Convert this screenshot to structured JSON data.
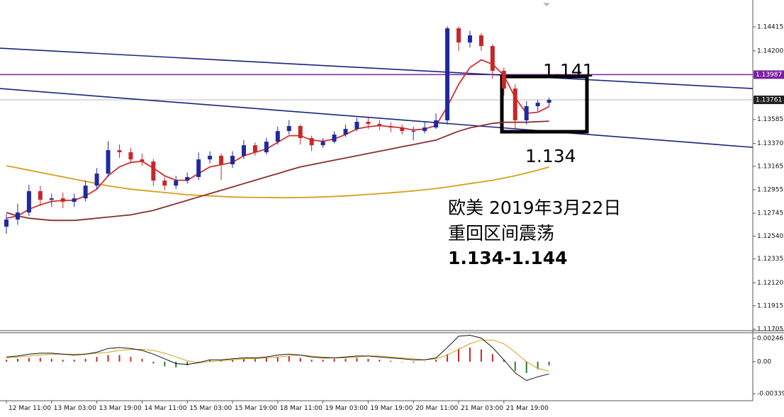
{
  "chart_data": {
    "type": "candlestick",
    "categories": [
      "12 Mar 11:00",
      null,
      null,
      null,
      "13 Mar 03:00",
      null,
      null,
      null,
      "13 Mar 19:00",
      null,
      null,
      null,
      "14 Mar 11:00",
      null,
      null,
      null,
      "15 Mar 03:00",
      null,
      null,
      null,
      "15 Mar 19:00",
      null,
      null,
      null,
      "18 Mar 11:00",
      null,
      null,
      null,
      "19 Mar 03:00",
      null,
      null,
      null,
      "19 Mar 19:00",
      null,
      null,
      null,
      "20 Mar 11:00",
      null,
      null,
      null,
      "21 Mar 03:00",
      null,
      null,
      null,
      "21 Mar 19:00",
      null,
      null,
      null,
      null
    ],
    "ohlc": [
      [
        1.12624,
        1.1274,
        1.1256,
        1.12688
      ],
      [
        1.12688,
        1.1283,
        1.1264,
        1.12751
      ],
      [
        1.12751,
        1.13,
        1.1272,
        1.12942
      ],
      [
        1.12942,
        1.1299,
        1.1281,
        1.12865
      ],
      [
        1.12865,
        1.1292,
        1.128,
        1.12878
      ],
      [
        1.12878,
        1.1293,
        1.1279,
        1.12846
      ],
      [
        1.12846,
        1.1292,
        1.128,
        1.12878
      ],
      [
        1.12878,
        1.1304,
        1.1285,
        1.12992
      ],
      [
        1.12992,
        1.1315,
        1.1296,
        1.131
      ],
      [
        1.131,
        1.1339,
        1.1307,
        1.1331
      ],
      [
        1.1331,
        1.1336,
        1.1324,
        1.13291
      ],
      [
        1.13291,
        1.1333,
        1.1319,
        1.13227
      ],
      [
        1.13227,
        1.1328,
        1.1317,
        1.13208
      ],
      [
        1.13208,
        1.1323,
        1.1299,
        1.13037
      ],
      [
        1.13037,
        1.1307,
        1.1295,
        1.12992
      ],
      [
        1.12992,
        1.1308,
        1.1296,
        1.13037
      ],
      [
        1.13037,
        1.1311,
        1.1301,
        1.13069
      ],
      [
        1.13069,
        1.1329,
        1.1304,
        1.13227
      ],
      [
        1.13227,
        1.133,
        1.1319,
        1.13259
      ],
      [
        1.13259,
        1.1328,
        1.1304,
        1.13183
      ],
      [
        1.13183,
        1.133,
        1.1315,
        1.13259
      ],
      [
        1.13259,
        1.134,
        1.1323,
        1.13354
      ],
      [
        1.13354,
        1.1338,
        1.1326,
        1.13291
      ],
      [
        1.13291,
        1.1342,
        1.1327,
        1.13386
      ],
      [
        1.13386,
        1.1352,
        1.1336,
        1.13481
      ],
      [
        1.13481,
        1.1358,
        1.1345,
        1.13526
      ],
      [
        1.13526,
        1.1354,
        1.1336,
        1.13418
      ],
      [
        1.13418,
        1.1344,
        1.133,
        1.13354
      ],
      [
        1.13354,
        1.1342,
        1.1333,
        1.13386
      ],
      [
        1.13386,
        1.1348,
        1.1337,
        1.1345
      ],
      [
        1.1345,
        1.1354,
        1.1343,
        1.135
      ],
      [
        1.135,
        1.136,
        1.1348,
        1.13564
      ],
      [
        1.13564,
        1.136,
        1.135,
        1.13545
      ],
      [
        1.13545,
        1.1358,
        1.1349,
        1.13526
      ],
      [
        1.13526,
        1.1356,
        1.1347,
        1.13513
      ],
      [
        1.13513,
        1.1354,
        1.1345,
        1.13481
      ],
      [
        1.13481,
        1.1352,
        1.134,
        1.13481
      ],
      [
        1.13481,
        1.1356,
        1.1346,
        1.13513
      ],
      [
        1.13513,
        1.1364,
        1.135,
        1.13577
      ],
      [
        1.13577,
        1.1442,
        1.1354,
        1.14402
      ],
      [
        1.14402,
        1.1442,
        1.142,
        1.14275
      ],
      [
        1.14275,
        1.1438,
        1.1423,
        1.14339
      ],
      [
        1.14339,
        1.1436,
        1.142,
        1.14243
      ],
      [
        1.14243,
        1.1426,
        1.1395,
        1.14021
      ],
      [
        1.14021,
        1.1405,
        1.138,
        1.13862
      ],
      [
        1.13862,
        1.139,
        1.1348,
        1.13577
      ],
      [
        1.13577,
        1.1375,
        1.1354,
        1.13704
      ],
      [
        1.13704,
        1.1376,
        1.1366,
        1.13735
      ],
      [
        1.13735,
        1.1378,
        1.137,
        1.13761
      ]
    ],
    "up_color": "#1f2a9e",
    "down_color": "#c62828",
    "overlays": [
      {
        "color": "#d4a017",
        "values": [
          1.1317,
          1.1315,
          1.1313,
          1.1311,
          1.1309,
          1.1307,
          1.1305,
          1.1303,
          1.1301,
          1.1299,
          1.12975,
          1.1296,
          1.1295,
          1.1294,
          1.1293,
          1.1292,
          1.1291,
          1.12905,
          1.129,
          1.12895,
          1.1289,
          1.12888,
          1.12886,
          1.12885,
          1.12884,
          1.12884,
          1.12885,
          1.12887,
          1.1289,
          1.12895,
          1.129,
          1.12906,
          1.12913,
          1.1292,
          1.12928,
          1.12936,
          1.12945,
          1.12955,
          1.12965,
          1.1298,
          1.12995,
          1.1301,
          1.13025,
          1.1304,
          1.1306,
          1.1308,
          1.13105,
          1.1313,
          1.1316
        ]
      },
      {
        "color": "#8b2e2e",
        "values": [
          1.1275,
          1.1272,
          1.127,
          1.1269,
          1.1268,
          1.1268,
          1.1268,
          1.1269,
          1.127,
          1.1271,
          1.1272,
          1.1273,
          1.1275,
          1.1277,
          1.128,
          1.1283,
          1.1286,
          1.1289,
          1.1292,
          1.1295,
          1.1298,
          1.1301,
          1.1304,
          1.1307,
          1.131,
          1.1313,
          1.1316,
          1.1318,
          1.132,
          1.1322,
          1.1324,
          1.1326,
          1.1328,
          1.133,
          1.1332,
          1.1334,
          1.1336,
          1.1338,
          1.134,
          1.1344,
          1.1348,
          1.1351,
          1.1353,
          1.1355,
          1.1356,
          1.1356,
          1.1356,
          1.13565,
          1.1357
        ]
      },
      {
        "color": "#d32f2f",
        "values": [
          1.127,
          1.1272,
          1.1278,
          1.1282,
          1.1285,
          1.1286,
          1.1286,
          1.129,
          1.1296,
          1.1308,
          1.1316,
          1.132,
          1.1321,
          1.1315,
          1.1308,
          1.1304,
          1.1304,
          1.131,
          1.1316,
          1.1318,
          1.132,
          1.1326,
          1.1329,
          1.1332,
          1.1338,
          1.1344,
          1.1344,
          1.134,
          1.1339,
          1.1341,
          1.1345,
          1.135,
          1.1352,
          1.1353,
          1.1352,
          1.1351,
          1.1349,
          1.135,
          1.1353,
          1.137,
          1.139,
          1.1405,
          1.1412,
          1.1408,
          1.1398,
          1.1378,
          1.1364,
          1.1365,
          1.137
        ]
      }
    ],
    "trendlines": [
      {
        "color": "#1a237e",
        "values": [
          1.14224,
          1.13862
        ]
      },
      {
        "color": "#1a237e",
        "values": [
          1.13862,
          1.13335
        ]
      }
    ],
    "box": {
      "top": 1.1397,
      "bottom": 1.13475
    },
    "price_labels": [
      {
        "value": 1.13987,
        "color": "#7b1fa2"
      },
      {
        "value": 1.13761,
        "color": "#222222"
      }
    ],
    "ylim": [
      1.11692,
      1.14656
    ],
    "yticks": [
      1.14415,
      {
        "value": 1.142,
        "label": "1.14200"
      },
      1.13585,
      {
        "value": 1.1337,
        "label": "1.13370"
      },
      1.13165,
      1.12955,
      1.12745,
      {
        "value": 1.1254,
        "label": "1.12540"
      },
      1.12335,
      {
        "value": 1.1212,
        "label": "1.12120"
      },
      1.11915,
      1.11705
    ],
    "annotations": [
      "1.141",
      "1.134",
      "欧美 2019年3月22日",
      "重回区间震荡",
      "1.134-1.144"
    ],
    "macd": {
      "ylim": [
        -0.00414,
        0.003066
      ],
      "yticks": [
        0.002468,
        {
          "value": 0,
          "label": "0.00"
        },
        -0.003397
      ],
      "pos_color": "#c62828",
      "neg_color": "#2e7d32",
      "macd_color": "#111111",
      "signal_color": "#d4a017",
      "histogram": [
        0.0002,
        0.0003,
        0.0004,
        0.0004,
        0.0003,
        0.0002,
        0.0002,
        0.0003,
        0.0005,
        0.0007,
        0.0007,
        0.0005,
        0.0003,
        -0.0002,
        -0.0005,
        -0.0006,
        -0.0004,
        -0.0001,
        0.0002,
        0.0001,
        0.0002,
        0.0003,
        0.0003,
        0.0004,
        0.0005,
        0.0006,
        0.0004,
        0.0002,
        0.0002,
        0.0003,
        0.0003,
        0.0004,
        0.0003,
        0.0002,
        0.0001,
        0.0,
        -0.0001,
        0.0,
        0.0002,
        0.0008,
        0.0014,
        0.0015,
        0.0013,
        0.0008,
        0.0002,
        -0.001,
        -0.0012,
        -0.0008,
        -0.0004
      ],
      "macd": [
        0.0005,
        0.0006,
        0.0008,
        0.0009,
        0.0009,
        0.0008,
        0.0007,
        0.0008,
        0.001,
        0.0014,
        0.0015,
        0.0014,
        0.0012,
        0.0008,
        0.0003,
        -0.0002,
        -0.0003,
        -0.0001,
        0.0002,
        0.0002,
        0.0003,
        0.0004,
        0.0004,
        0.0005,
        0.0007,
        0.0008,
        0.0007,
        0.0005,
        0.0004,
        0.0004,
        0.0005,
        0.0006,
        0.0006,
        0.0005,
        0.0004,
        0.0003,
        0.0002,
        0.0002,
        0.0004,
        0.0015,
        0.0027,
        0.0028,
        0.0025,
        0.0015,
        0.0002,
        -0.0012,
        -0.002,
        -0.0016,
        -0.0013
      ],
      "signal": [
        0.0004,
        0.0005,
        0.0006,
        0.0007,
        0.0008,
        0.0008,
        0.0008,
        0.0008,
        0.0009,
        0.001,
        0.0012,
        0.0013,
        0.0013,
        0.0012,
        0.0009,
        0.0005,
        0.0001,
        -0.0001,
        0.0,
        0.0001,
        0.0002,
        0.0003,
        0.0003,
        0.0004,
        0.0005,
        0.0006,
        0.0007,
        0.0006,
        0.0005,
        0.0004,
        0.0004,
        0.0005,
        0.0006,
        0.0006,
        0.0005,
        0.0004,
        0.0003,
        0.0002,
        0.0003,
        0.0007,
        0.0013,
        0.0019,
        0.0023,
        0.0023,
        0.0019,
        0.001,
        0.0,
        -0.0007,
        -0.001
      ]
    }
  }
}
